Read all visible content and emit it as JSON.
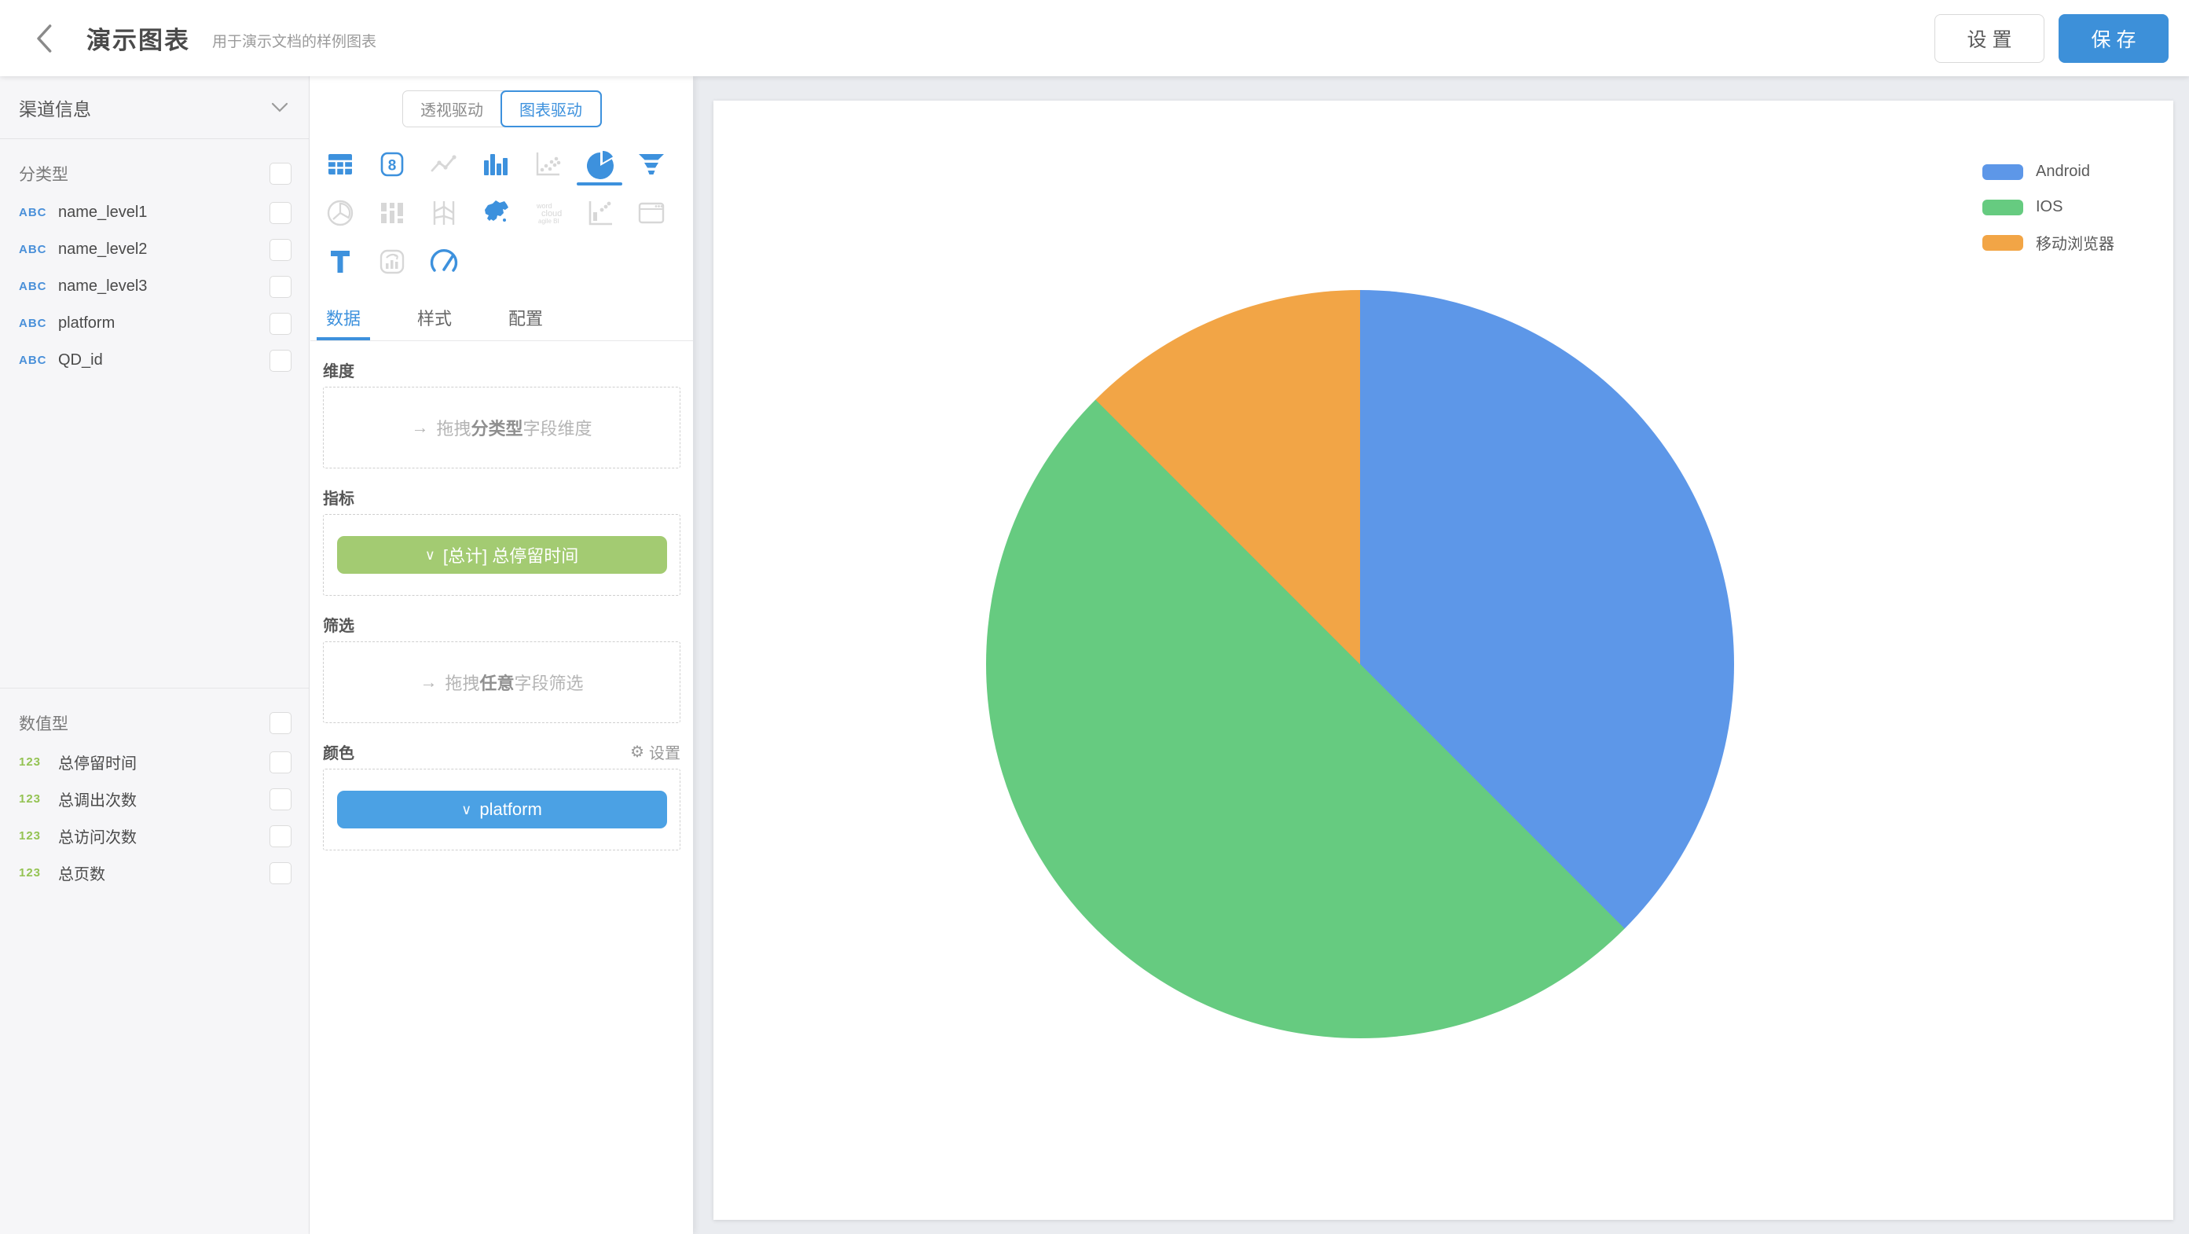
{
  "header": {
    "title": "演示图表",
    "subtitle": "用于演示文档的样例图表",
    "settings_label": "设 置",
    "save_label": "保 存"
  },
  "sidebar": {
    "dataset_name": "渠道信息",
    "categorical": {
      "label": "分类型",
      "badge": "ABC",
      "fields": [
        "name_level1",
        "name_level2",
        "name_level3",
        "platform",
        "QD_id"
      ],
      "checked": [
        false,
        false,
        false,
        false,
        false
      ]
    },
    "numeric": {
      "label": "数值型",
      "badge": "123",
      "fields": [
        "总停留时间",
        "总调出次数",
        "总访问次数",
        "总页数"
      ],
      "checked": [
        false,
        false,
        false,
        false
      ]
    }
  },
  "panel": {
    "mode_tabs": [
      {
        "label": "透视驱动",
        "active": false
      },
      {
        "label": "图表驱动",
        "active": true
      }
    ],
    "chart_type_icons": [
      {
        "name": "table-icon",
        "active": true
      },
      {
        "name": "number-card-icon",
        "active": true
      },
      {
        "name": "line-chart-icon",
        "active": false
      },
      {
        "name": "bar-chart-icon",
        "active": true
      },
      {
        "name": "scatter-chart-icon",
        "active": false
      },
      {
        "name": "pie-chart-icon",
        "active": true,
        "selected": true
      },
      {
        "name": "funnel-chart-icon",
        "active": true
      },
      {
        "name": "polar-chart-icon",
        "active": false
      },
      {
        "name": "sankey-chart-icon",
        "active": false
      },
      {
        "name": "parallel-chart-icon",
        "active": false
      },
      {
        "name": "map-chart-icon",
        "active": true
      },
      {
        "name": "word-cloud-icon",
        "active": false
      },
      {
        "name": "combo-chart-icon",
        "active": false
      },
      {
        "name": "iframe-widget-icon",
        "active": false
      },
      {
        "name": "text-widget-icon",
        "active": true
      },
      {
        "name": "card-chart-icon",
        "active": false
      },
      {
        "name": "gauge-chart-icon",
        "active": true
      }
    ],
    "tabs": [
      {
        "label": "数据",
        "active": true
      },
      {
        "label": "样式",
        "active": false
      },
      {
        "label": "配置",
        "active": false
      }
    ],
    "sections": {
      "dimension": {
        "label": "维度",
        "hint_parts": [
          "拖拽",
          "分类型",
          "字段维度"
        ]
      },
      "metric": {
        "label": "指标",
        "pill": "[总计] 总停留时间"
      },
      "filter": {
        "label": "筛选",
        "hint_parts": [
          "拖拽",
          "任意",
          "字段筛选"
        ]
      },
      "color": {
        "label": "颜色",
        "action": "设置",
        "pill": "platform"
      }
    }
  },
  "glyphs": {
    "drag_arrow": "→",
    "chevron_down": "∨",
    "gear": "⚙"
  },
  "chart_data": {
    "type": "pie",
    "labels": [
      "Android",
      "IOS",
      "移动浏览器"
    ],
    "values_percent": [
      37.5,
      50,
      12.5
    ],
    "colors": [
      "#5d97e8",
      "#66cb80",
      "#f2a546"
    ],
    "metric": "[总计] 总停留时间",
    "color_field": "platform",
    "start_angle_deg": 0,
    "direction": "clockwise",
    "legend_position": "top-right"
  },
  "theme_colors": {
    "accent_blue": "#3d91dd",
    "save_button": "#3d90d9",
    "metric_pill_green": "#a3cb72",
    "color_pill_blue": "#4ba1e4",
    "abc_badge_blue": "#4a90d9",
    "num_badge_green": "#94c353"
  }
}
